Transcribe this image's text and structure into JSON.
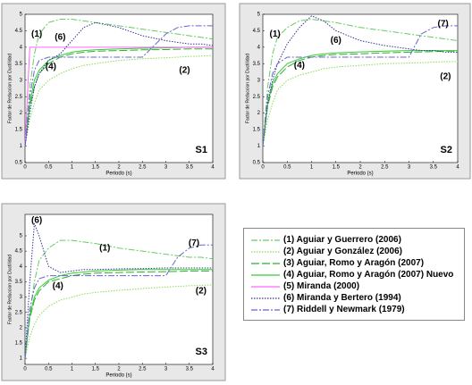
{
  "x_label": "Periodo (s)",
  "y_label": "Factor de Reduccion por Ductilidad",
  "x": [
    0,
    0.1,
    0.2,
    0.3,
    0.5,
    0.75,
    1,
    1.25,
    1.5,
    2,
    2.5,
    3,
    3.25,
    3.5,
    3.75,
    4
  ],
  "legend": [
    {
      "name": "(1) Aguiar y Guerrero (2006)",
      "color": "#66cc66",
      "dash": "dashdot"
    },
    {
      "name": "(2) Aguiar y González (2006)",
      "color": "#88dd55",
      "dash": "dotted"
    },
    {
      "name": "(3) Aguiar, Romo y Aragón (2007)",
      "color": "#33aa33",
      "dash": "longdash"
    },
    {
      "name": "(4) Aguiar, Romo y Aragón (2007) Nuevo",
      "color": "#33cc33",
      "dash": "solid"
    },
    {
      "name": "(5) Miranda (2000)",
      "color": "#ff66ff",
      "dash": "solid"
    },
    {
      "name": "(6) Miranda y Bertero (1994)",
      "color": "#333399",
      "dash": "dotted"
    },
    {
      "name": "(7) Riddell y Newmark (1979)",
      "color": "#6666cc",
      "dash": "dashdot"
    }
  ],
  "chart_data": [
    {
      "type": "line",
      "label": "S1",
      "xlim": [
        0,
        4
      ],
      "ylim": [
        0.5,
        5
      ],
      "xticks": [
        0,
        0.5,
        1,
        1.5,
        2,
        2.5,
        3,
        3.5,
        4
      ],
      "yticks": [
        0.5,
        1,
        1.5,
        2,
        2.5,
        3,
        3.5,
        4,
        4.5,
        5
      ],
      "series": [
        {
          "values": [
            1,
            2.8,
            3.8,
            4.4,
            4.75,
            4.85,
            4.85,
            4.8,
            4.75,
            4.65,
            4.55,
            4.45,
            4.4,
            4.35,
            4.3,
            4.25
          ]
        },
        {
          "values": [
            1,
            1.8,
            2.3,
            2.7,
            3.0,
            3.2,
            3.35,
            3.45,
            3.5,
            3.6,
            3.65,
            3.68,
            3.7,
            3.72,
            3.73,
            3.75
          ]
        },
        {
          "values": [
            1,
            2.2,
            2.8,
            3.2,
            3.5,
            3.7,
            3.8,
            3.85,
            3.88,
            3.9,
            3.92,
            3.93,
            3.94,
            3.95,
            3.95,
            3.95
          ]
        },
        {
          "values": [
            1,
            2.3,
            3.0,
            3.3,
            3.6,
            3.75,
            3.85,
            3.9,
            3.92,
            3.95,
            3.97,
            3.98,
            3.99,
            4.0,
            4.0,
            4.0
          ]
        },
        {
          "values": [
            1,
            4,
            4,
            4,
            4,
            4,
            4,
            4,
            4,
            4,
            4,
            4,
            4,
            4,
            4,
            4
          ]
        },
        {
          "values": [
            1,
            2.0,
            2.8,
            3.2,
            3.6,
            3.8,
            4.2,
            4.6,
            4.75,
            4.6,
            4.35,
            4.2,
            4.15,
            4.1,
            4.1,
            4.05
          ]
        },
        {
          "values": [
            1,
            2.5,
            3.3,
            3.6,
            3.7,
            3.7,
            3.7,
            3.7,
            3.7,
            3.7,
            3.7,
            4.4,
            4.6,
            4.65,
            4.65,
            4.65
          ]
        }
      ],
      "annotations": [
        {
          "text": "(1)",
          "x": 0.25,
          "y": 4.4
        },
        {
          "text": "(6)",
          "x": 0.75,
          "y": 4.3
        },
        {
          "text": "(4)",
          "x": 0.55,
          "y": 3.4
        },
        {
          "text": "(2)",
          "x": 3.4,
          "y": 3.3
        }
      ]
    },
    {
      "type": "line",
      "label": "S2",
      "xlim": [
        0,
        4
      ],
      "ylim": [
        0.5,
        5
      ],
      "xticks": [
        0,
        0.5,
        1,
        1.5,
        2,
        2.5,
        3,
        3.5,
        4
      ],
      "yticks": [
        0.5,
        1,
        1.5,
        2,
        2.5,
        3,
        3.5,
        4,
        4.5,
        5
      ],
      "series": [
        {
          "values": [
            1,
            2.8,
            3.8,
            4.3,
            4.6,
            4.8,
            4.85,
            4.8,
            4.75,
            4.6,
            4.5,
            4.4,
            4.35,
            4.3,
            4.25,
            4.2
          ]
        },
        {
          "values": [
            1,
            1.8,
            2.3,
            2.7,
            3.0,
            3.15,
            3.25,
            3.35,
            3.4,
            3.45,
            3.5,
            3.52,
            3.53,
            3.55,
            3.56,
            3.57
          ]
        },
        {
          "values": [
            1,
            2.2,
            2.8,
            3.1,
            3.4,
            3.6,
            3.7,
            3.75,
            3.78,
            3.8,
            3.83,
            3.85,
            3.86,
            3.87,
            3.88,
            3.88
          ]
        },
        {
          "values": [
            1,
            2.3,
            2.9,
            3.2,
            3.5,
            3.65,
            3.75,
            3.8,
            3.83,
            3.86,
            3.88,
            3.9,
            3.9,
            3.9,
            3.9,
            3.9
          ]
        },
        {
          "values": [
            null,
            null,
            null,
            null,
            null,
            null,
            null,
            null,
            null,
            null,
            null,
            null,
            null,
            null,
            null,
            null
          ]
        },
        {
          "values": [
            1,
            2.3,
            3.0,
            3.5,
            4.1,
            4.6,
            4.95,
            4.8,
            4.5,
            4.2,
            4.05,
            3.95,
            3.9,
            3.9,
            3.85,
            3.85
          ]
        },
        {
          "values": [
            1,
            2.5,
            3.2,
            3.5,
            3.7,
            3.7,
            3.7,
            3.7,
            3.7,
            3.7,
            3.7,
            3.7,
            4.4,
            4.6,
            4.65,
            4.65
          ]
        }
      ],
      "annotations": [
        {
          "text": "(1)",
          "x": 0.25,
          "y": 4.4
        },
        {
          "text": "(6)",
          "x": 1.5,
          "y": 4.2
        },
        {
          "text": "(4)",
          "x": 0.75,
          "y": 3.45
        },
        {
          "text": "(7)",
          "x": 3.7,
          "y": 4.7
        },
        {
          "text": "(2)",
          "x": 3.75,
          "y": 3.1
        }
      ]
    },
    {
      "type": "line",
      "label": "S3",
      "xlim": [
        0,
        4
      ],
      "ylim": [
        0.8,
        5.7
      ],
      "xticks": [
        0,
        0.5,
        1,
        1.5,
        2,
        2.5,
        3,
        3.5,
        4
      ],
      "yticks": [
        1,
        1.5,
        2,
        2.5,
        3,
        3.5,
        4,
        4.5,
        5
      ],
      "series": [
        {
          "values": [
            1,
            2.5,
            3.5,
            4.2,
            4.6,
            4.85,
            4.85,
            4.8,
            4.75,
            4.6,
            4.5,
            4.4,
            4.35,
            4.3,
            4.3,
            4.25
          ]
        },
        {
          "values": [
            1,
            1.7,
            2.1,
            2.4,
            2.7,
            2.9,
            3.0,
            3.1,
            3.15,
            3.22,
            3.28,
            3.33,
            3.35,
            3.37,
            3.38,
            3.4
          ]
        },
        {
          "values": [
            1,
            2.3,
            2.9,
            3.2,
            3.5,
            3.6,
            3.7,
            3.75,
            3.78,
            3.8,
            3.82,
            3.83,
            3.84,
            3.85,
            3.85,
            3.85
          ]
        },
        {
          "values": [
            1,
            2.4,
            3.0,
            3.3,
            3.55,
            3.7,
            3.78,
            3.82,
            3.85,
            3.88,
            3.9,
            3.9,
            3.9,
            3.9,
            3.9,
            3.9
          ]
        },
        {
          "values": [
            null,
            null,
            null,
            null,
            null,
            null,
            null,
            null,
            null,
            null,
            null,
            null,
            null,
            null,
            null,
            null
          ]
        },
        {
          "values": [
            1,
            3.5,
            5.4,
            5.0,
            4.0,
            3.8,
            3.85,
            3.9,
            3.9,
            3.92,
            3.93,
            3.95,
            3.95,
            3.95,
            3.95,
            3.95
          ]
        },
        {
          "values": [
            1,
            2.6,
            3.3,
            3.6,
            3.7,
            3.7,
            3.7,
            3.7,
            3.7,
            3.7,
            3.7,
            3.7,
            4.3,
            4.6,
            4.7,
            4.7
          ]
        }
      ],
      "annotations": [
        {
          "text": "(6)",
          "x": 0.25,
          "y": 5.5
        },
        {
          "text": "(1)",
          "x": 1.7,
          "y": 4.6
        },
        {
          "text": "(4)",
          "x": 0.7,
          "y": 3.35
        },
        {
          "text": "(7)",
          "x": 3.6,
          "y": 4.75
        },
        {
          "text": "(2)",
          "x": 3.75,
          "y": 3.2
        }
      ]
    }
  ]
}
